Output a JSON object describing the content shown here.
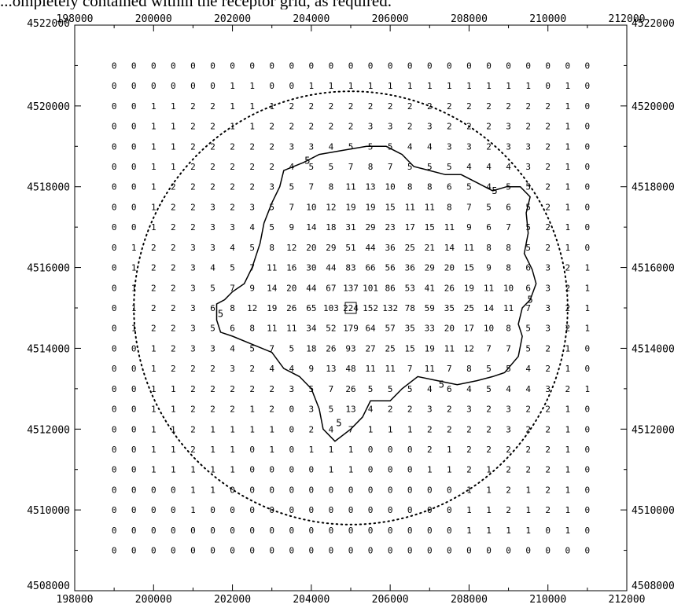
{
  "caption": "...ompletely contained within the receptor grid, as required.",
  "chart_data": {
    "type": "heatmap",
    "title": "",
    "xlabel": "",
    "ylabel": "",
    "xlim": [
      198000,
      212000
    ],
    "ylim": [
      4508000,
      4522000
    ],
    "x_tick_labels": [
      "198000",
      "200000",
      "202000",
      "204000",
      "206000",
      "208000",
      "210000",
      "212000"
    ],
    "x_tick_values": [
      198000,
      200000,
      202000,
      204000,
      206000,
      208000,
      210000,
      212000
    ],
    "y_tick_labels": [
      "4522000",
      "4520000",
      "4518000",
      "4516000",
      "4514000",
      "4512000",
      "4510000",
      "4508000"
    ],
    "y_tick_values": [
      4522000,
      4520000,
      4518000,
      4516000,
      4514000,
      4512000,
      4510000,
      4508000
    ],
    "grid": false,
    "receptor_x": [
      199000,
      199500,
      200000,
      200500,
      201000,
      201500,
      202000,
      202500,
      203000,
      203500,
      204000,
      204500,
      205000,
      205500,
      206000,
      206500,
      207000,
      207500,
      208000,
      208500,
      209000,
      209500,
      210000,
      210500,
      211000
    ],
    "receptor_y": [
      4521000,
      4520500,
      4520000,
      4519500,
      4519000,
      4518500,
      4518000,
      4517500,
      4517000,
      4516500,
      4516000,
      4515500,
      4515000,
      4514500,
      4514000,
      4513500,
      4513000,
      4512500,
      4512000,
      4511500,
      4511000,
      4510500,
      4510000,
      4509500,
      4509000
    ],
    "values": [
      [
        0,
        0,
        0,
        0,
        0,
        0,
        0,
        0,
        0,
        0,
        0,
        0,
        0,
        0,
        0,
        0,
        0,
        0,
        0,
        0,
        0,
        0,
        0,
        0,
        0
      ],
      [
        0,
        0,
        0,
        0,
        0,
        0,
        1,
        1,
        0,
        0,
        1,
        1,
        1,
        1,
        1,
        1,
        1,
        1,
        1,
        1,
        1,
        1,
        0,
        1,
        0
      ],
      [
        0,
        0,
        1,
        1,
        2,
        2,
        1,
        1,
        1,
        2,
        2,
        2,
        2,
        2,
        2,
        2,
        2,
        2,
        2,
        2,
        2,
        2,
        2,
        1,
        0
      ],
      [
        0,
        0,
        1,
        1,
        2,
        2,
        1,
        1,
        2,
        2,
        2,
        2,
        2,
        3,
        3,
        2,
        3,
        2,
        2,
        2,
        3,
        2,
        2,
        1,
        0
      ],
      [
        0,
        0,
        1,
        1,
        2,
        2,
        2,
        2,
        2,
        3,
        3,
        4,
        5,
        5,
        5,
        4,
        4,
        3,
        3,
        2,
        3,
        3,
        2,
        1,
        0
      ],
      [
        0,
        0,
        1,
        1,
        2,
        2,
        2,
        2,
        2,
        4,
        5,
        5,
        7,
        8,
        7,
        5,
        5,
        5,
        4,
        4,
        4,
        3,
        2,
        1,
        0
      ],
      [
        0,
        0,
        1,
        2,
        2,
        2,
        2,
        2,
        3,
        5,
        7,
        8,
        11,
        13,
        10,
        8,
        8,
        6,
        5,
        4,
        5,
        5,
        2,
        1,
        0
      ],
      [
        0,
        0,
        1,
        2,
        2,
        3,
        2,
        3,
        5,
        7,
        10,
        12,
        19,
        19,
        15,
        11,
        11,
        8,
        7,
        5,
        6,
        5,
        2,
        1,
        0
      ],
      [
        0,
        0,
        1,
        2,
        2,
        3,
        3,
        4,
        5,
        9,
        14,
        18,
        31,
        29,
        23,
        17,
        15,
        11,
        9,
        6,
        7,
        5,
        2,
        1,
        0
      ],
      [
        0,
        1,
        2,
        2,
        3,
        3,
        4,
        5,
        8,
        12,
        20,
        29,
        51,
        44,
        36,
        25,
        21,
        14,
        11,
        8,
        8,
        5,
        2,
        1,
        0
      ],
      [
        0,
        1,
        2,
        2,
        3,
        4,
        5,
        7,
        11,
        16,
        30,
        44,
        83,
        66,
        56,
        36,
        29,
        20,
        15,
        9,
        8,
        6,
        3,
        2,
        1
      ],
      [
        0,
        1,
        2,
        2,
        3,
        5,
        7,
        9,
        14,
        20,
        44,
        67,
        137,
        101,
        86,
        53,
        41,
        26,
        19,
        11,
        10,
        6,
        3,
        2,
        1
      ],
      [
        0,
        1,
        2,
        2,
        3,
        6,
        8,
        12,
        19,
        26,
        65,
        103,
        224,
        152,
        132,
        78,
        59,
        35,
        25,
        14,
        11,
        7,
        3,
        2,
        1
      ],
      [
        0,
        1,
        2,
        2,
        3,
        5,
        6,
        8,
        11,
        11,
        34,
        52,
        179,
        64,
        57,
        35,
        33,
        20,
        17,
        10,
        8,
        5,
        3,
        2,
        1
      ],
      [
        0,
        0,
        1,
        2,
        3,
        3,
        4,
        5,
        7,
        5,
        18,
        26,
        93,
        27,
        25,
        15,
        19,
        11,
        12,
        7,
        7,
        5,
        2,
        1,
        0
      ],
      [
        0,
        0,
        1,
        2,
        2,
        2,
        3,
        2,
        4,
        4,
        9,
        13,
        48,
        11,
        11,
        7,
        11,
        7,
        8,
        5,
        5,
        4,
        2,
        1,
        0
      ],
      [
        0,
        0,
        1,
        1,
        2,
        2,
        2,
        2,
        2,
        3,
        5,
        7,
        26,
        5,
        5,
        5,
        4,
        6,
        4,
        5,
        4,
        4,
        3,
        2,
        1
      ],
      [
        0,
        0,
        1,
        1,
        2,
        2,
        2,
        1,
        2,
        0,
        3,
        5,
        13,
        4,
        2,
        2,
        3,
        2,
        3,
        2,
        3,
        2,
        2,
        1,
        0
      ],
      [
        0,
        0,
        1,
        1,
        2,
        1,
        1,
        1,
        1,
        0,
        2,
        4,
        7,
        1,
        1,
        1,
        2,
        2,
        2,
        2,
        3,
        2,
        2,
        1,
        0
      ],
      [
        0,
        0,
        1,
        1,
        2,
        1,
        1,
        0,
        1,
        0,
        1,
        1,
        1,
        0,
        0,
        0,
        2,
        1,
        2,
        2,
        2,
        2,
        2,
        1,
        0
      ],
      [
        0,
        0,
        1,
        1,
        1,
        1,
        1,
        0,
        0,
        0,
        0,
        1,
        1,
        0,
        0,
        0,
        1,
        1,
        2,
        1,
        2,
        2,
        2,
        1,
        0
      ],
      [
        0,
        0,
        0,
        0,
        1,
        1,
        0,
        0,
        0,
        0,
        0,
        0,
        0,
        0,
        0,
        0,
        0,
        0,
        1,
        1,
        2,
        1,
        2,
        1,
        0
      ],
      [
        0,
        0,
        0,
        0,
        1,
        0,
        0,
        0,
        0,
        0,
        0,
        0,
        0,
        0,
        0,
        0,
        0,
        0,
        1,
        1,
        2,
        1,
        2,
        1,
        0
      ],
      [
        0,
        0,
        0,
        0,
        0,
        0,
        0,
        0,
        0,
        0,
        0,
        0,
        0,
        0,
        0,
        0,
        0,
        0,
        1,
        1,
        1,
        1,
        0,
        1,
        0
      ],
      [
        0,
        0,
        0,
        0,
        0,
        0,
        0,
        0,
        0,
        0,
        0,
        0,
        0,
        0,
        0,
        0,
        0,
        0,
        0,
        0,
        0,
        0,
        0,
        0,
        0
      ]
    ],
    "source_marker": {
      "x": 205000,
      "y": 4515000
    },
    "circle": {
      "center_x": 205000,
      "center_y": 4515000,
      "radius": 5500
    },
    "contour_label": "5",
    "contour": [
      [
        203300,
        4518400
      ],
      [
        203800,
        4518600
      ],
      [
        204200,
        4518800
      ],
      [
        204800,
        4518900
      ],
      [
        205400,
        4519000
      ],
      [
        205900,
        4519000
      ],
      [
        206300,
        4518800
      ],
      [
        206600,
        4518500
      ],
      [
        207000,
        4518400
      ],
      [
        207400,
        4518300
      ],
      [
        207800,
        4518300
      ],
      [
        208200,
        4518100
      ],
      [
        208600,
        4517900
      ],
      [
        208950,
        4518000
      ],
      [
        209300,
        4518000
      ],
      [
        209550,
        4517750
      ],
      [
        209450,
        4517350
      ],
      [
        209500,
        4516850
      ],
      [
        209400,
        4516350
      ],
      [
        209600,
        4515950
      ],
      [
        209700,
        4515600
      ],
      [
        209550,
        4515200
      ],
      [
        209350,
        4515000
      ],
      [
        209250,
        4514600
      ],
      [
        209350,
        4514300
      ],
      [
        209250,
        4513800
      ],
      [
        208900,
        4513400
      ],
      [
        208600,
        4513300
      ],
      [
        208200,
        4513200
      ],
      [
        207700,
        4513100
      ],
      [
        207200,
        4513200
      ],
      [
        206700,
        4513300
      ],
      [
        206300,
        4513000
      ],
      [
        206000,
        4512700
      ],
      [
        205500,
        4512700
      ],
      [
        205300,
        4512300
      ],
      [
        205000,
        4512000
      ],
      [
        204600,
        4511700
      ],
      [
        204300,
        4512000
      ],
      [
        204200,
        4512500
      ],
      [
        204000,
        4513000
      ],
      [
        203700,
        4513300
      ],
      [
        203300,
        4513500
      ],
      [
        203000,
        4513900
      ],
      [
        202500,
        4514100
      ],
      [
        202000,
        4514300
      ],
      [
        201700,
        4514400
      ],
      [
        201600,
        4514700
      ],
      [
        201600,
        4515100
      ],
      [
        201800,
        4515200
      ],
      [
        202000,
        4515400
      ],
      [
        202300,
        4515600
      ],
      [
        202500,
        4516000
      ],
      [
        202700,
        4516600
      ],
      [
        202800,
        4517100
      ],
      [
        203000,
        4517600
      ],
      [
        203200,
        4518000
      ],
      [
        203300,
        4518400
      ]
    ],
    "contour_label_positions": [
      {
        "x": 203900,
        "y": 4518650
      },
      {
        "x": 208650,
        "y": 4517900
      },
      {
        "x": 209550,
        "y": 4515200
      },
      {
        "x": 201700,
        "y": 4514850
      },
      {
        "x": 207300,
        "y": 4513100
      },
      {
        "x": 204700,
        "y": 4512150
      }
    ]
  }
}
